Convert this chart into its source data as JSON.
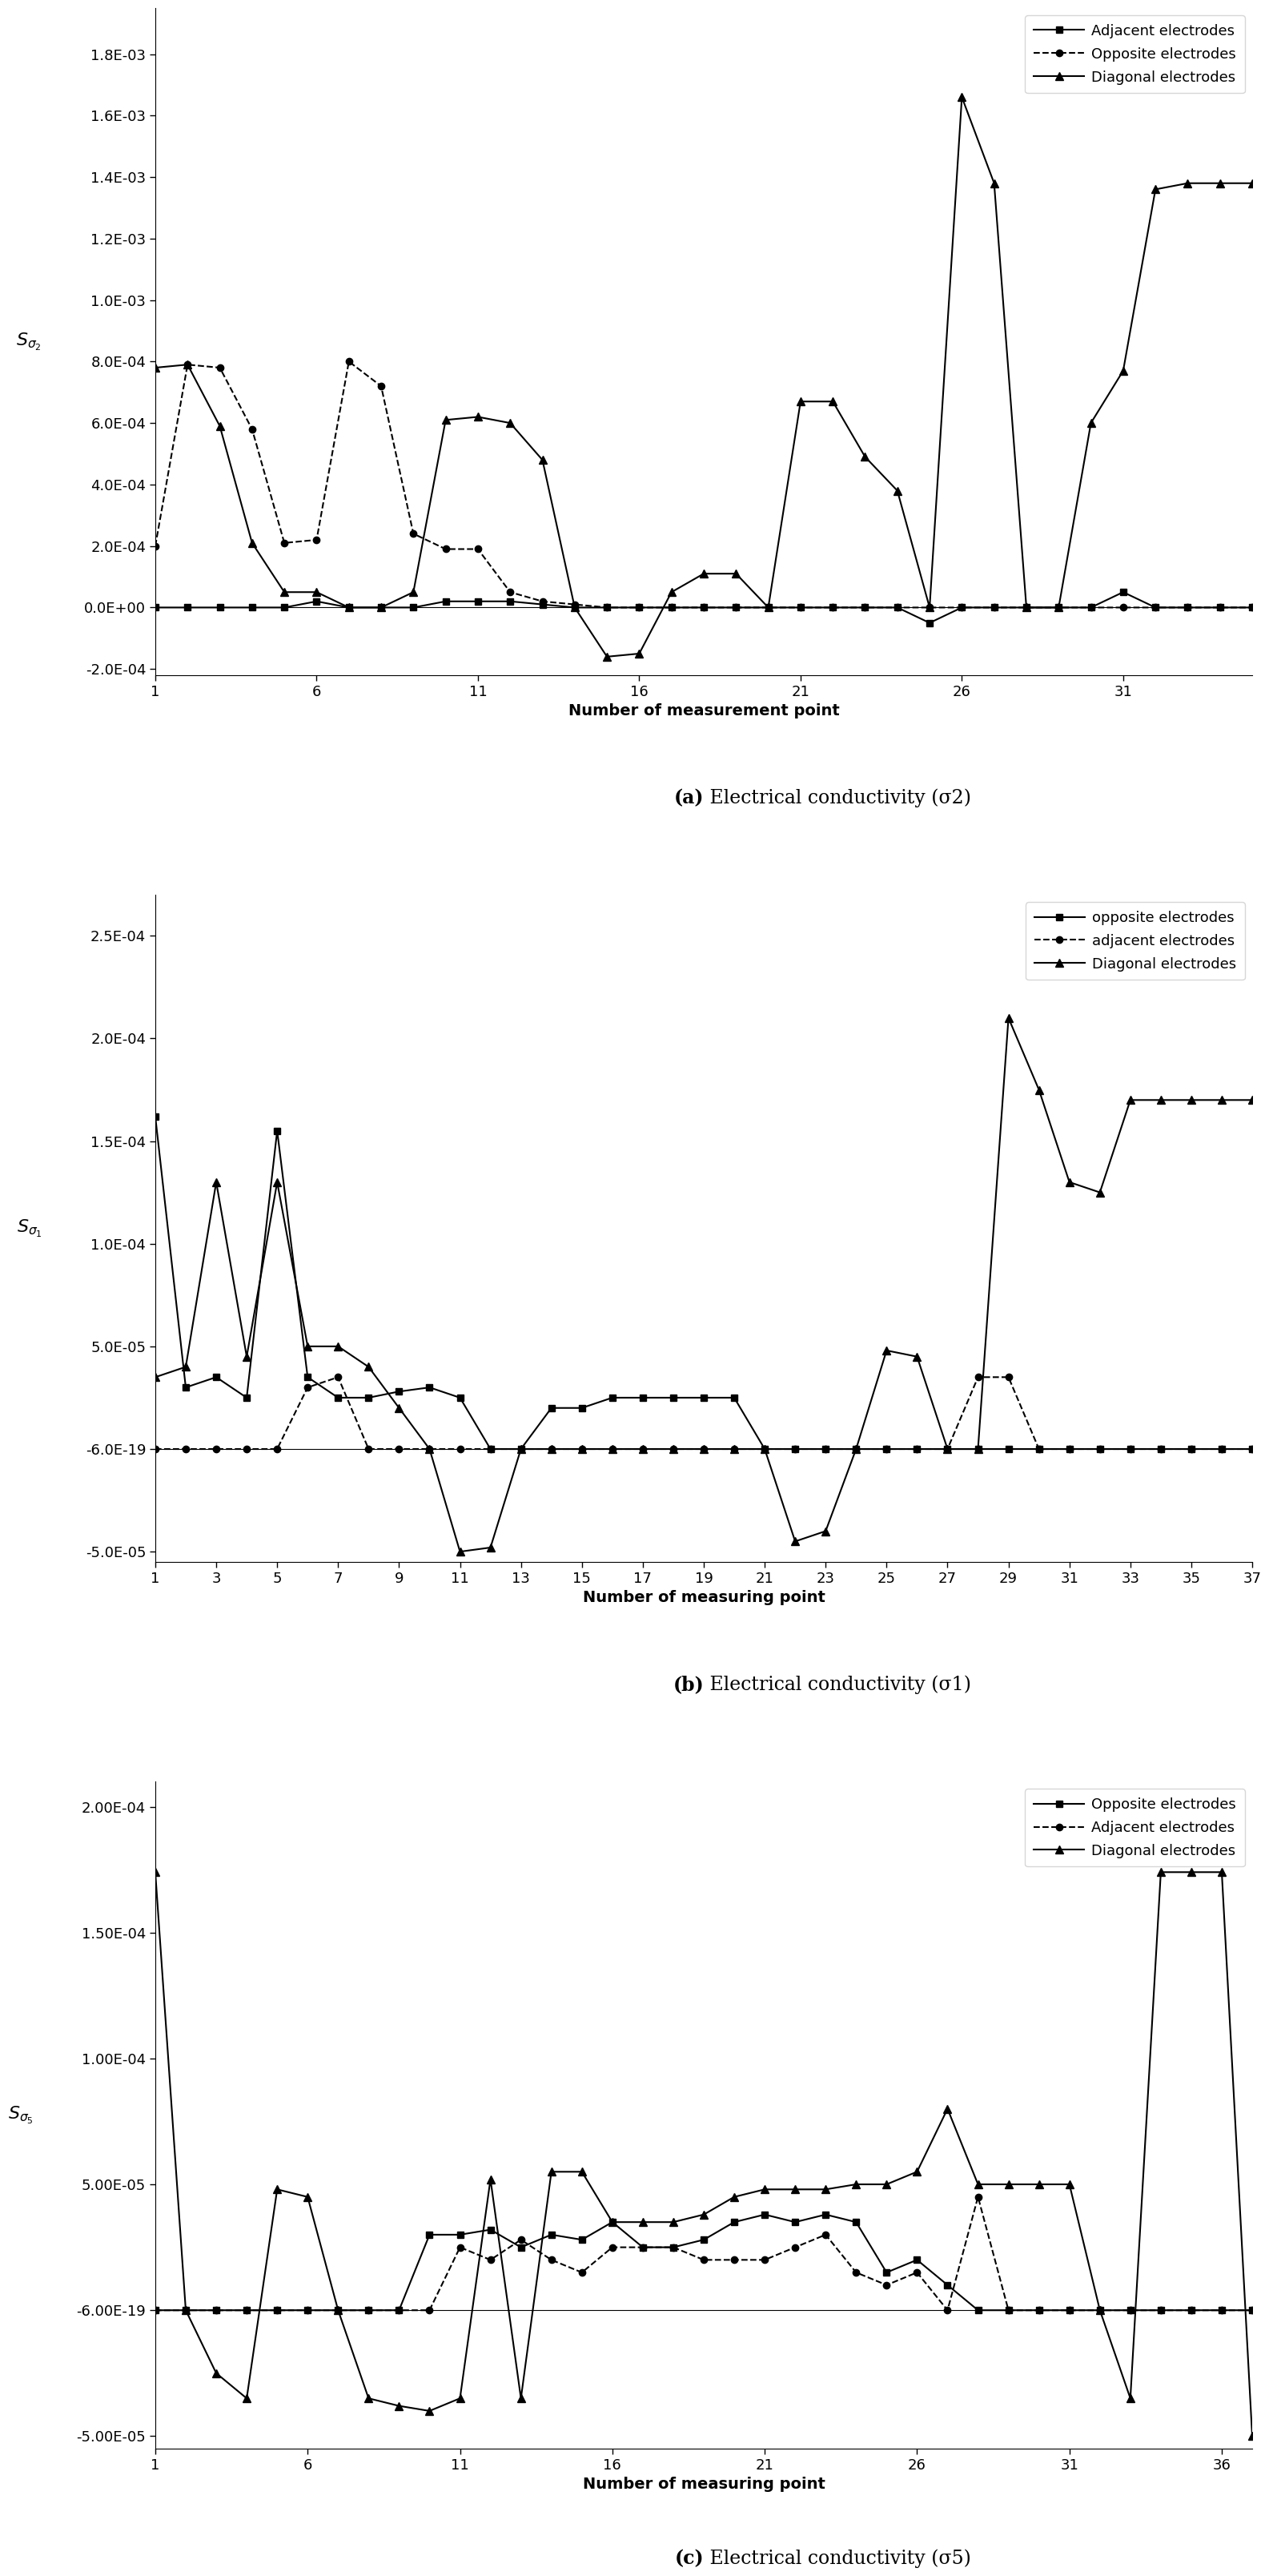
{
  "chart_a": {
    "title_bold": "(a)",
    "title_rest": " Electrical conductivity (σ2)",
    "ylabel": "Sσ2",
    "xlabel": "Number of measurement point",
    "xlim": [
      1,
      35
    ],
    "ylim": [
      -0.00022,
      0.00195
    ],
    "yticks": [
      -0.0002,
      0.0,
      0.0002,
      0.0004,
      0.0006,
      0.0008,
      0.001,
      0.0012,
      0.0014,
      0.0016,
      0.0018
    ],
    "ytick_labels": [
      "-2.0E-04",
      "0.0E+00",
      "2.0E-04",
      "4.0E-04",
      "6.0E-04",
      "8.0E-04",
      "1.0E-03",
      "1.2E-03",
      "1.4E-03",
      "1.6E-03",
      "1.8E-03"
    ],
    "xticks": [
      1,
      6,
      11,
      16,
      21,
      26,
      31
    ],
    "adjacent_x": [
      1,
      2,
      3,
      4,
      5,
      6,
      7,
      8,
      9,
      10,
      11,
      12,
      13,
      14,
      15,
      16,
      17,
      18,
      19,
      20,
      21,
      22,
      23,
      24,
      25,
      26,
      27,
      28,
      29,
      30,
      31,
      32,
      33,
      34,
      35
    ],
    "adjacent_y": [
      0.0,
      0.0,
      0.0,
      0.0,
      0.0,
      2e-05,
      0.0,
      0.0,
      0.0,
      2e-05,
      2e-05,
      2e-05,
      1e-05,
      0.0,
      0.0,
      0.0,
      0.0,
      0.0,
      0.0,
      0.0,
      0.0,
      0.0,
      0.0,
      0.0,
      -5e-05,
      0.0,
      0.0,
      0.0,
      0.0,
      0.0,
      5e-05,
      0.0,
      0.0,
      0.0,
      0.0
    ],
    "opposite_x": [
      1,
      2,
      3,
      4,
      5,
      6,
      7,
      8,
      9,
      10,
      11,
      12,
      13,
      14,
      15,
      16,
      17,
      18,
      19,
      20,
      21,
      22,
      23,
      24,
      25,
      26,
      27,
      28,
      29,
      30,
      31,
      32,
      33,
      34,
      35
    ],
    "opposite_y": [
      0.0002,
      0.00079,
      0.00078,
      0.00058,
      0.00021,
      0.00022,
      0.0008,
      0.00072,
      0.00024,
      0.00019,
      0.00019,
      5e-05,
      2e-05,
      1e-05,
      0.0,
      0.0,
      0.0,
      0.0,
      0.0,
      0.0,
      0.0,
      0.0,
      0.0,
      0.0,
      0.0,
      0.0,
      0.0,
      0.0,
      0.0,
      0.0,
      0.0,
      0.0,
      0.0,
      0.0,
      0.0
    ],
    "diagonal_x": [
      1,
      2,
      3,
      4,
      5,
      6,
      7,
      8,
      9,
      10,
      11,
      12,
      13,
      14,
      15,
      16,
      17,
      18,
      19,
      20,
      21,
      22,
      23,
      24,
      25,
      26,
      27,
      28,
      29,
      30,
      31,
      32,
      33,
      34,
      35
    ],
    "diagonal_y": [
      0.00078,
      0.00079,
      0.00059,
      0.00021,
      5e-05,
      5e-05,
      0.0,
      0.0,
      5e-05,
      0.00061,
      0.00062,
      0.0006,
      0.00048,
      0.0,
      -0.00016,
      -0.00015,
      5e-05,
      0.00011,
      0.00011,
      0.0,
      0.00067,
      0.00067,
      0.00049,
      0.00038,
      0.0,
      0.00166,
      0.00138,
      0.0,
      0.0,
      0.0006,
      0.00077,
      0.00136,
      0.00138,
      0.00138,
      0.00138
    ]
  },
  "chart_b": {
    "title_bold": "(b)",
    "title_rest": " Electrical conductivity (σ1)",
    "ylabel": "Sσ1",
    "xlabel": "Number of measuring point",
    "xlim": [
      1,
      37
    ],
    "ylim": [
      -5.5e-05,
      0.00027
    ],
    "yticks": [
      -5e-05,
      -6e-19,
      5e-05,
      0.0001,
      0.00015,
      0.0002,
      0.00025
    ],
    "ytick_labels": [
      "-5.0E-05",
      "-6.0E-19",
      "5.0E-05",
      "1.0E-04",
      "1.5E-04",
      "2.0E-04",
      "2.5E-04"
    ],
    "xticks": [
      1,
      3,
      5,
      7,
      9,
      11,
      13,
      15,
      17,
      19,
      21,
      23,
      25,
      27,
      29,
      31,
      33,
      35,
      37
    ],
    "opposite_x": [
      1,
      2,
      3,
      4,
      5,
      6,
      7,
      8,
      9,
      10,
      11,
      12,
      13,
      14,
      15,
      16,
      17,
      18,
      19,
      20,
      21,
      22,
      23,
      24,
      25,
      26,
      27,
      28,
      29,
      30,
      31,
      32,
      33,
      34,
      35,
      36,
      37
    ],
    "opposite_y": [
      0.000162,
      3e-05,
      3.5e-05,
      2.5e-05,
      0.000155,
      3.5e-05,
      2.5e-05,
      2.5e-05,
      2.8e-05,
      3e-05,
      2.5e-05,
      0.0,
      0.0,
      2e-05,
      2e-05,
      2.5e-05,
      2.5e-05,
      2.5e-05,
      2.5e-05,
      2.5e-05,
      0.0,
      0.0,
      0.0,
      0.0,
      0.0,
      0.0,
      0.0,
      0.0,
      0.0,
      0.0,
      0.0,
      0.0,
      0.0,
      0.0,
      0.0,
      0.0,
      0.0
    ],
    "adjacent_x": [
      1,
      2,
      3,
      4,
      5,
      6,
      7,
      8,
      9,
      10,
      11,
      12,
      13,
      14,
      15,
      16,
      17,
      18,
      19,
      20,
      21,
      22,
      23,
      24,
      25,
      26,
      27,
      28,
      29,
      30,
      31,
      32,
      33,
      34,
      35,
      36,
      37
    ],
    "adjacent_y": [
      0.0,
      0.0,
      0.0,
      0.0,
      0.0,
      3e-05,
      3.5e-05,
      0.0,
      0.0,
      0.0,
      0.0,
      0.0,
      0.0,
      0.0,
      0.0,
      0.0,
      0.0,
      0.0,
      0.0,
      0.0,
      0.0,
      0.0,
      0.0,
      0.0,
      0.0,
      0.0,
      0.0,
      3.5e-05,
      3.5e-05,
      0.0,
      0.0,
      0.0,
      0.0,
      0.0,
      0.0,
      0.0,
      0.0
    ],
    "diagonal_x": [
      1,
      2,
      3,
      4,
      5,
      6,
      7,
      8,
      9,
      10,
      11,
      12,
      13,
      14,
      15,
      16,
      17,
      18,
      19,
      20,
      21,
      22,
      23,
      24,
      25,
      26,
      27,
      28,
      29,
      30,
      31,
      32,
      33,
      34,
      35,
      36,
      37
    ],
    "diagonal_y": [
      3.5e-05,
      4e-05,
      0.00013,
      4.5e-05,
      0.00013,
      5e-05,
      5e-05,
      4e-05,
      2e-05,
      0.0,
      -5e-05,
      -4.8e-05,
      0.0,
      0.0,
      0.0,
      0.0,
      0.0,
      0.0,
      0.0,
      0.0,
      0.0,
      -4.5e-05,
      -4e-05,
      0.0,
      4.8e-05,
      4.5e-05,
      0.0,
      0.0,
      0.00021,
      0.000175,
      0.00013,
      0.000125,
      0.00017,
      0.00017,
      0.00017,
      0.00017,
      0.00017
    ]
  },
  "chart_c": {
    "title_bold": "(c)",
    "title_rest": " Electrical conductivity (σ5)",
    "ylabel": "Sσ5",
    "xlabel": "Number of measuring point",
    "xlim": [
      1,
      37
    ],
    "ylim": [
      -5.5e-05,
      0.00021
    ],
    "yticks": [
      -5e-05,
      -6e-19,
      5e-05,
      0.0001,
      0.00015,
      0.0002
    ],
    "ytick_labels": [
      "-5.00E-05",
      "-6.00E-19",
      "5.00E-05",
      "1.00E-04",
      "1.50E-04",
      "2.00E-04"
    ],
    "xticks": [
      1,
      6,
      11,
      16,
      21,
      26,
      31,
      36
    ],
    "opposite_x": [
      1,
      2,
      3,
      4,
      5,
      6,
      7,
      8,
      9,
      10,
      11,
      12,
      13,
      14,
      15,
      16,
      17,
      18,
      19,
      20,
      21,
      22,
      23,
      24,
      25,
      26,
      27,
      28,
      29,
      30,
      31,
      32,
      33,
      34,
      35,
      36,
      37
    ],
    "opposite_y": [
      0.0,
      0.0,
      0.0,
      0.0,
      0.0,
      0.0,
      0.0,
      0.0,
      0.0,
      3e-05,
      3e-05,
      3.2e-05,
      2.5e-05,
      3e-05,
      2.8e-05,
      3.5e-05,
      2.5e-05,
      2.5e-05,
      2.8e-05,
      3.5e-05,
      3.8e-05,
      3.5e-05,
      3.8e-05,
      3.5e-05,
      1.5e-05,
      2e-05,
      1e-05,
      0.0,
      0.0,
      0.0,
      0.0,
      0.0,
      0.0,
      0.0,
      0.0,
      0.0,
      0.0
    ],
    "adjacent_x": [
      1,
      2,
      3,
      4,
      5,
      6,
      7,
      8,
      9,
      10,
      11,
      12,
      13,
      14,
      15,
      16,
      17,
      18,
      19,
      20,
      21,
      22,
      23,
      24,
      25,
      26,
      27,
      28,
      29,
      30,
      31,
      32,
      33,
      34,
      35,
      36,
      37
    ],
    "adjacent_y": [
      0.0,
      0.0,
      0.0,
      0.0,
      0.0,
      0.0,
      0.0,
      0.0,
      0.0,
      0.0,
      2.5e-05,
      2e-05,
      2.8e-05,
      2e-05,
      1.5e-05,
      2.5e-05,
      2.5e-05,
      2.5e-05,
      2e-05,
      2e-05,
      2e-05,
      2.5e-05,
      3e-05,
      1.5e-05,
      1e-05,
      1.5e-05,
      0.0,
      4.5e-05,
      0.0,
      0.0,
      0.0,
      0.0,
      0.0,
      0.0,
      0.0,
      0.0,
      0.0
    ],
    "diagonal_x": [
      1,
      2,
      3,
      4,
      5,
      6,
      7,
      8,
      9,
      10,
      11,
      12,
      13,
      14,
      15,
      16,
      17,
      18,
      19,
      20,
      21,
      22,
      23,
      24,
      25,
      26,
      27,
      28,
      29,
      30,
      31,
      32,
      33,
      34,
      35,
      36,
      37
    ],
    "diagonal_y": [
      0.000174,
      0.0,
      -2.5e-05,
      -3.5e-05,
      4.8e-05,
      4.5e-05,
      0.0,
      -3.5e-05,
      -3.8e-05,
      -4e-05,
      -3.5e-05,
      5.2e-05,
      -3.5e-05,
      5.5e-05,
      5.5e-05,
      3.5e-05,
      3.5e-05,
      3.5e-05,
      3.8e-05,
      4.5e-05,
      4.8e-05,
      4.8e-05,
      4.8e-05,
      5e-05,
      5e-05,
      5.5e-05,
      8e-05,
      5e-05,
      5e-05,
      5e-05,
      5e-05,
      0.0,
      -3.5e-05,
      0.000174,
      0.000174,
      0.000174,
      -5e-05
    ]
  }
}
